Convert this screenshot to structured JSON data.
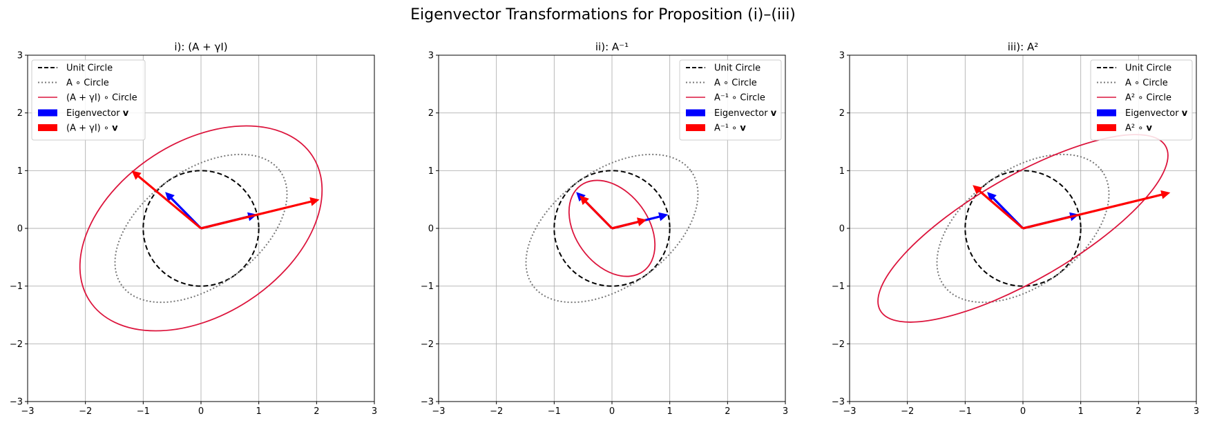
{
  "suptitle": "Eigenvector Transformations for Proposition (i)–(iii)",
  "chart_data": [
    {
      "type": "line",
      "title": "i): (A + γI)",
      "xlim": [
        -3,
        3
      ],
      "ylim": [
        -3,
        3
      ],
      "xticks": [
        "−3",
        "−2",
        "−1",
        "0",
        "1",
        "2",
        "3"
      ],
      "yticks": [
        "−3",
        "−2",
        "−1",
        "0",
        "1",
        "2",
        "3"
      ],
      "grid": true,
      "legend_position": "top-left",
      "ellipses": [
        {
          "role": "unit",
          "a": 1.0,
          "b": 1.0,
          "angle_deg": 0
        },
        {
          "role": "A",
          "a": 1.69,
          "b": 1.0,
          "angle_deg": 36
        },
        {
          "role": "transform",
          "a": 2.3,
          "b": 1.5,
          "angle_deg": 33
        }
      ],
      "vectors": [
        {
          "role": "eigen",
          "x": 0.97,
          "y": 0.24
        },
        {
          "role": "eigen",
          "x": -0.62,
          "y": 0.63
        },
        {
          "role": "transformed",
          "x": 2.05,
          "y": 0.5
        },
        {
          "role": "transformed",
          "x": -1.2,
          "y": 1.0
        }
      ],
      "legend": [
        {
          "kind": "dashed",
          "color": "#000000",
          "text": "Unit Circle",
          "bold": ""
        },
        {
          "kind": "dotted",
          "color": "#777777",
          "text": "A ∘ Circle",
          "bold": ""
        },
        {
          "kind": "solid",
          "color": "#dc143c",
          "text": "(A + γI) ∘ Circle",
          "bold": ""
        },
        {
          "kind": "patch",
          "color": "#0000ff",
          "text": "Eigenvector ",
          "bold": "v"
        },
        {
          "kind": "patch",
          "color": "#ff0000",
          "text": "(A + γI) ∘ ",
          "bold": "v"
        }
      ]
    },
    {
      "type": "line",
      "title": "ii): A⁻¹",
      "xlim": [
        -3,
        3
      ],
      "ylim": [
        -3,
        3
      ],
      "xticks": [
        "−3",
        "−2",
        "−1",
        "0",
        "1",
        "2",
        "3"
      ],
      "yticks": [
        "−3",
        "−2",
        "−1",
        "0",
        "1",
        "2",
        "3"
      ],
      "grid": true,
      "legend_position": "top-right",
      "ellipses": [
        {
          "role": "unit",
          "a": 1.0,
          "b": 1.0,
          "angle_deg": 0
        },
        {
          "role": "A",
          "a": 1.69,
          "b": 1.0,
          "angle_deg": 36
        },
        {
          "role": "transform",
          "a": 0.92,
          "b": 0.63,
          "angle_deg": -54
        }
      ],
      "vectors": [
        {
          "role": "eigen",
          "x": 0.97,
          "y": 0.24
        },
        {
          "role": "eigen",
          "x": -0.62,
          "y": 0.63
        },
        {
          "role": "transformed",
          "x": 0.6,
          "y": 0.15
        },
        {
          "role": "transformed",
          "x": -0.56,
          "y": 0.57
        }
      ],
      "legend": [
        {
          "kind": "dashed",
          "color": "#000000",
          "text": "Unit Circle",
          "bold": ""
        },
        {
          "kind": "dotted",
          "color": "#777777",
          "text": "A ∘ Circle",
          "bold": ""
        },
        {
          "kind": "solid",
          "color": "#dc143c",
          "text": "A⁻¹ ∘ Circle",
          "bold": ""
        },
        {
          "kind": "patch",
          "color": "#0000ff",
          "text": "Eigenvector ",
          "bold": "v"
        },
        {
          "kind": "patch",
          "color": "#ff0000",
          "text": "A⁻¹ ∘ ",
          "bold": "v"
        }
      ]
    },
    {
      "type": "line",
      "title": "iii): A²",
      "xlim": [
        -3,
        3
      ],
      "ylim": [
        -3,
        3
      ],
      "xticks": [
        "−3",
        "−2",
        "−1",
        "0",
        "1",
        "2",
        "3"
      ],
      "yticks": [
        "−3",
        "−2",
        "−1",
        "0",
        "1",
        "2",
        "3"
      ],
      "grid": true,
      "legend_position": "top-right",
      "ellipses": [
        {
          "role": "unit",
          "a": 1.0,
          "b": 1.0,
          "angle_deg": 0
        },
        {
          "role": "A",
          "a": 1.69,
          "b": 1.0,
          "angle_deg": 36
        },
        {
          "role": "transform",
          "a": 2.85,
          "b": 0.9,
          "angle_deg": 30
        }
      ],
      "vectors": [
        {
          "role": "eigen",
          "x": 0.97,
          "y": 0.24
        },
        {
          "role": "eigen",
          "x": -0.62,
          "y": 0.63
        },
        {
          "role": "transformed",
          "x": 2.55,
          "y": 0.62
        },
        {
          "role": "transformed",
          "x": -0.87,
          "y": 0.75
        }
      ],
      "legend": [
        {
          "kind": "dashed",
          "color": "#000000",
          "text": "Unit Circle",
          "bold": ""
        },
        {
          "kind": "dotted",
          "color": "#777777",
          "text": "A ∘ Circle",
          "bold": ""
        },
        {
          "kind": "solid",
          "color": "#dc143c",
          "text": "A² ∘ Circle",
          "bold": ""
        },
        {
          "kind": "patch",
          "color": "#0000ff",
          "text": "Eigenvector ",
          "bold": "v"
        },
        {
          "kind": "patch",
          "color": "#ff0000",
          "text": "A² ∘ ",
          "bold": "v"
        }
      ]
    }
  ]
}
